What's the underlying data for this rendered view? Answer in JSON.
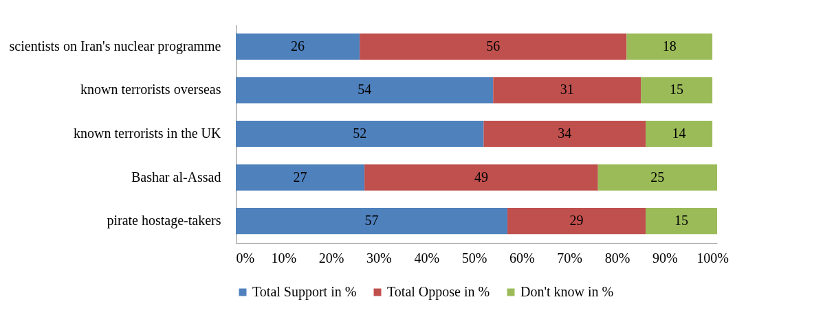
{
  "chart_data": {
    "type": "bar",
    "orientation": "horizontal",
    "stacked": true,
    "data_labels": true,
    "legend": "bottom",
    "grid": false,
    "categories": [
      "scientists on Iran's nuclear programme",
      "known terrorists overseas",
      "known terrorists in the UK",
      "Bashar al-Assad",
      "pirate hostage-takers"
    ],
    "series": [
      {
        "name": "Total Support in %",
        "color": "#4f81bd",
        "values": [
          26,
          54,
          52,
          27,
          57
        ]
      },
      {
        "name": "Total Oppose in %",
        "color": "#c0504d",
        "values": [
          56,
          31,
          34,
          49,
          29
        ]
      },
      {
        "name": "Don't know in %",
        "color": "#9bbb59",
        "values": [
          18,
          15,
          14,
          25,
          15
        ]
      }
    ],
    "xlim": [
      0,
      101
    ],
    "xticks": [
      {
        "value": 0,
        "label": "0%"
      },
      {
        "value": 10,
        "label": "10%"
      },
      {
        "value": 20,
        "label": "20%"
      },
      {
        "value": 30,
        "label": "30%"
      },
      {
        "value": 40,
        "label": "40%"
      },
      {
        "value": 50,
        "label": "50%"
      },
      {
        "value": 60,
        "label": "60%"
      },
      {
        "value": 70,
        "label": "70%"
      },
      {
        "value": 80,
        "label": "80%"
      },
      {
        "value": 90,
        "label": "90%"
      },
      {
        "value": 100,
        "label": "100%"
      }
    ]
  }
}
